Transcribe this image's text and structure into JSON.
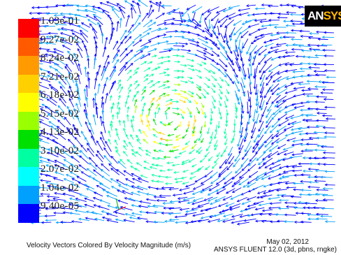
{
  "legend": {
    "labels": [
      "1.03e-01",
      "9.27e-02",
      "8.24e-02",
      "7.21e-02",
      "6.18e-02",
      "5.15e-02",
      "4.13e-02",
      "3.10e-02",
      "2.07e-02",
      "1.04e-02",
      "9.40e-05"
    ],
    "colors": [
      "#ff0000",
      "#ff5a00",
      "#ff9a00",
      "#ffd000",
      "#ffff00",
      "#9aff00",
      "#00e000",
      "#00ffa0",
      "#00ffff",
      "#00a0ff",
      "#0000ff"
    ]
  },
  "logo": {
    "text_a": "AN",
    "text_b": "SYS"
  },
  "footer": {
    "caption": "Velocity Vectors Colored By Velocity Magnitude (m/s)",
    "date": "May 02, 2012",
    "solver": "ANSYS FLUENT 12.0 (3d, pbns, rngke)"
  }
}
